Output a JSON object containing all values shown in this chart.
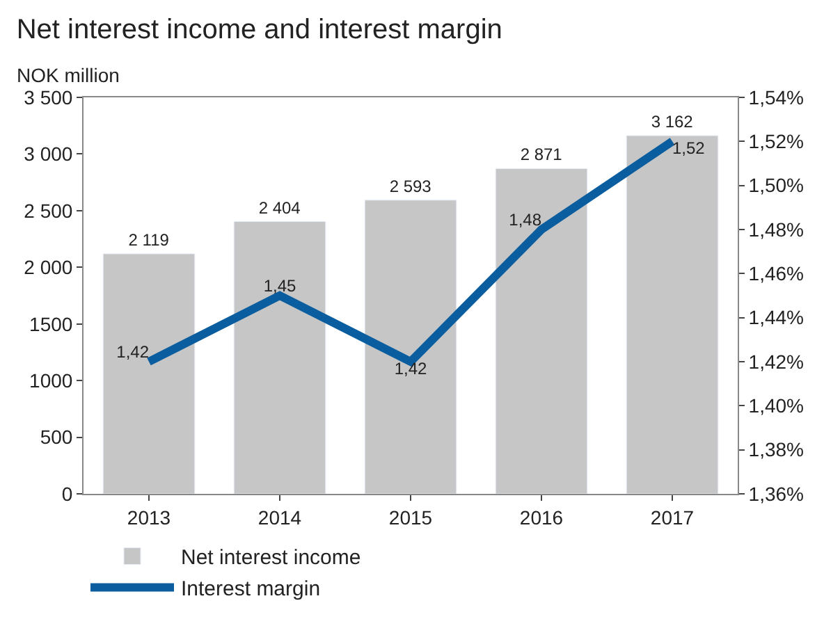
{
  "chart_data": {
    "type": "bar",
    "title": "Net interest income and interest margin",
    "ylabel": "NOK million",
    "categories": [
      "2013",
      "2014",
      "2015",
      "2016",
      "2017"
    ],
    "series": [
      {
        "name": "Net interest income",
        "color": "#c6c6c6",
        "values": [
          2119,
          2404,
          2593,
          2871,
          3162
        ],
        "value_labels": [
          "2 119",
          "2 404",
          "2 593",
          "2 871",
          "3 162"
        ]
      },
      {
        "name": "Interest margin",
        "type": "line",
        "axis": "y2",
        "color": "#0a5d9e",
        "values": [
          1.42,
          1.45,
          1.42,
          1.48,
          1.52
        ],
        "value_labels": [
          "1,42",
          "1,45",
          "1,42",
          "1,48",
          "1,52"
        ]
      }
    ],
    "ylim": [
      0,
      3500
    ],
    "yticks": [
      0,
      500,
      1000,
      1500,
      {
        "value": 2000,
        "label": "2 000"
      },
      {
        "value": 2500,
        "label": "2 500"
      },
      {
        "value": 3000,
        "label": "3 000"
      },
      {
        "value": 3500,
        "label": "3 500"
      }
    ],
    "y2lim": [
      1.36,
      1.54
    ],
    "y2ticks": [
      {
        "value": 1.36,
        "label": "1,36%"
      },
      {
        "value": 1.38,
        "label": "1,38%"
      },
      {
        "value": 1.4,
        "label": "1,40%"
      },
      {
        "value": 1.42,
        "label": "1,42%"
      },
      {
        "value": 1.44,
        "label": "1,44%"
      },
      {
        "value": 1.46,
        "label": "1,46%"
      },
      {
        "value": 1.48,
        "label": "1,48%"
      },
      {
        "value": 1.5,
        "label": "1,50%"
      },
      {
        "value": 1.52,
        "label": "1,52%"
      },
      {
        "value": 1.54,
        "label": "1,54%"
      }
    ],
    "legend": "bottom"
  }
}
